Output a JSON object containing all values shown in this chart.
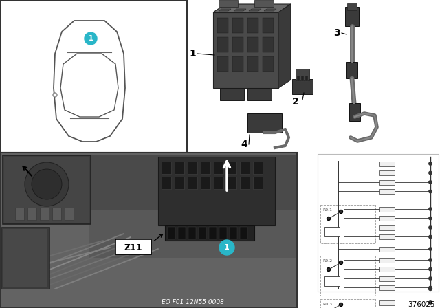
{
  "bg_color": "#ffffff",
  "teal_color": "#29b6c8",
  "bottom_text": "EO F01 12N55 0008",
  "ref_number": "376025",
  "z11_label": "Z11",
  "fig_width": 6.4,
  "fig_height": 4.48,
  "dpi": 100
}
